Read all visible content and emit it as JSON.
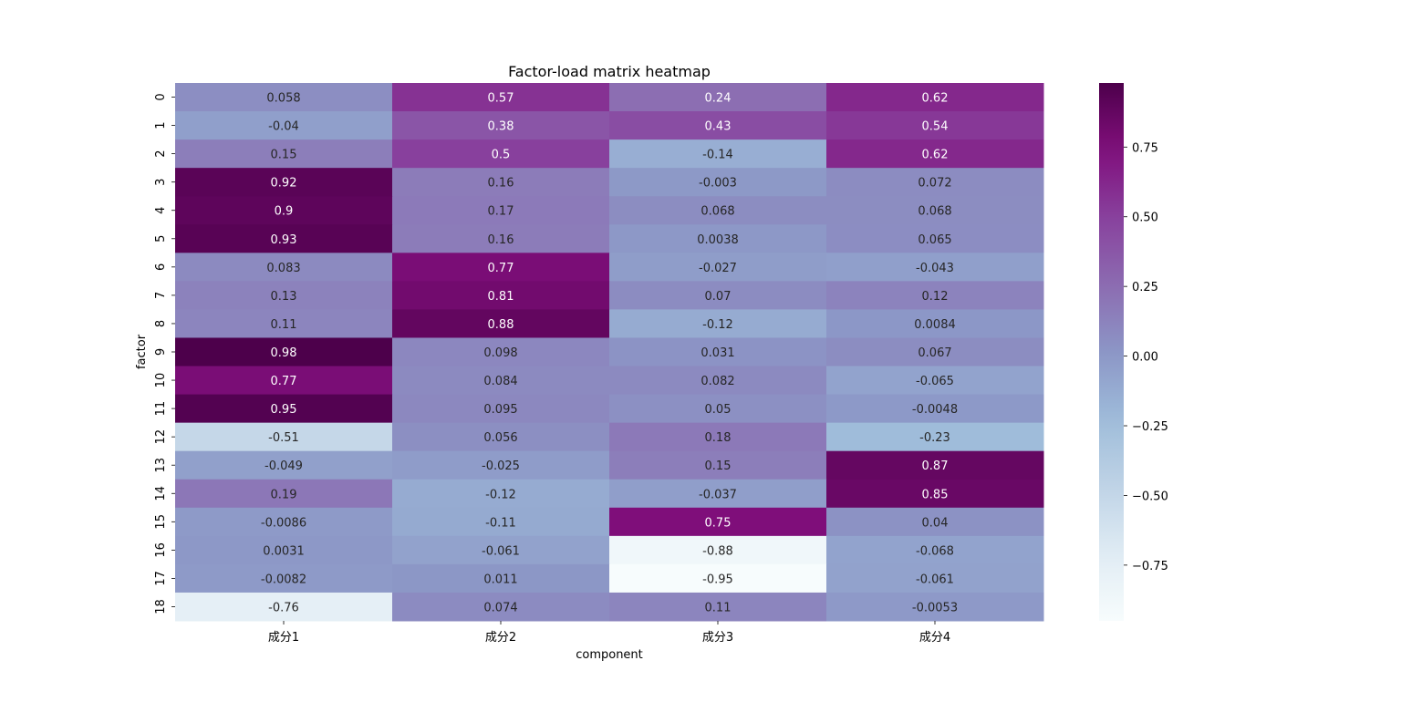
{
  "chart_data": {
    "type": "heatmap",
    "title": "Factor-load matrix heatmap",
    "xlabel": "component",
    "ylabel": "factor",
    "x_categories": [
      "成分1",
      "成分2",
      "成分3",
      "成分4"
    ],
    "y_categories": [
      "0",
      "1",
      "2",
      "3",
      "4",
      "5",
      "6",
      "7",
      "8",
      "9",
      "10",
      "11",
      "12",
      "13",
      "14",
      "15",
      "16",
      "17",
      "18"
    ],
    "values": [
      [
        0.058,
        0.57,
        0.24,
        0.62
      ],
      [
        -0.04,
        0.38,
        0.43,
        0.54
      ],
      [
        0.15,
        0.5,
        -0.14,
        0.62
      ],
      [
        0.92,
        0.16,
        -0.003,
        0.072
      ],
      [
        0.9,
        0.17,
        0.068,
        0.068
      ],
      [
        0.93,
        0.16,
        0.0038,
        0.065
      ],
      [
        0.083,
        0.77,
        -0.027,
        -0.043
      ],
      [
        0.13,
        0.81,
        0.07,
        0.12
      ],
      [
        0.11,
        0.88,
        -0.12,
        0.0084
      ],
      [
        0.98,
        0.098,
        0.031,
        0.067
      ],
      [
        0.77,
        0.084,
        0.082,
        -0.065
      ],
      [
        0.95,
        0.095,
        0.05,
        -0.0048
      ],
      [
        -0.51,
        0.056,
        0.18,
        -0.23
      ],
      [
        -0.049,
        -0.025,
        0.15,
        0.87
      ],
      [
        0.19,
        -0.12,
        -0.037,
        0.85
      ],
      [
        -0.0086,
        -0.11,
        0.75,
        0.04
      ],
      [
        0.0031,
        -0.061,
        -0.88,
        -0.068
      ],
      [
        -0.0082,
        0.011,
        -0.95,
        -0.061
      ],
      [
        -0.76,
        0.074,
        0.11,
        -0.0053
      ]
    ],
    "annotations": [
      [
        "0.058",
        "0.57",
        "0.24",
        "0.62"
      ],
      [
        "-0.04",
        "0.38",
        "0.43",
        "0.54"
      ],
      [
        "0.15",
        "0.5",
        "-0.14",
        "0.62"
      ],
      [
        "0.92",
        "0.16",
        "-0.003",
        "0.072"
      ],
      [
        "0.9",
        "0.17",
        "0.068",
        "0.068"
      ],
      [
        "0.93",
        "0.16",
        "0.0038",
        "0.065"
      ],
      [
        "0.083",
        "0.77",
        "-0.027",
        "-0.043"
      ],
      [
        "0.13",
        "0.81",
        "0.07",
        "0.12"
      ],
      [
        "0.11",
        "0.88",
        "-0.12",
        "0.0084"
      ],
      [
        "0.98",
        "0.098",
        "0.031",
        "0.067"
      ],
      [
        "0.77",
        "0.084",
        "0.082",
        "-0.065"
      ],
      [
        "0.95",
        "0.095",
        "0.05",
        "-0.0048"
      ],
      [
        "-0.51",
        "0.056",
        "0.18",
        "-0.23"
      ],
      [
        "-0.049",
        "-0.025",
        "0.15",
        "0.87"
      ],
      [
        "0.19",
        "-0.12",
        "-0.037",
        "0.85"
      ],
      [
        "-0.0086",
        "-0.11",
        "0.75",
        "0.04"
      ],
      [
        "0.0031",
        "-0.061",
        "-0.88",
        "-0.068"
      ],
      [
        "-0.0082",
        "0.011",
        "-0.95",
        "-0.061"
      ],
      [
        "-0.76",
        "0.074",
        "0.11",
        "-0.0053"
      ]
    ],
    "colormap": "BuPu",
    "vmin": -0.95,
    "vmax": 0.98,
    "colorbar_ticks": [
      0.75,
      0.5,
      0.25,
      0.0,
      -0.25,
      -0.5,
      -0.75
    ],
    "colorbar_tick_labels": [
      "0.75",
      "0.50",
      "0.25",
      "0.00",
      "−0.25",
      "−0.50",
      "−0.75"
    ],
    "grid": false,
    "colorbar_placement": "right"
  }
}
